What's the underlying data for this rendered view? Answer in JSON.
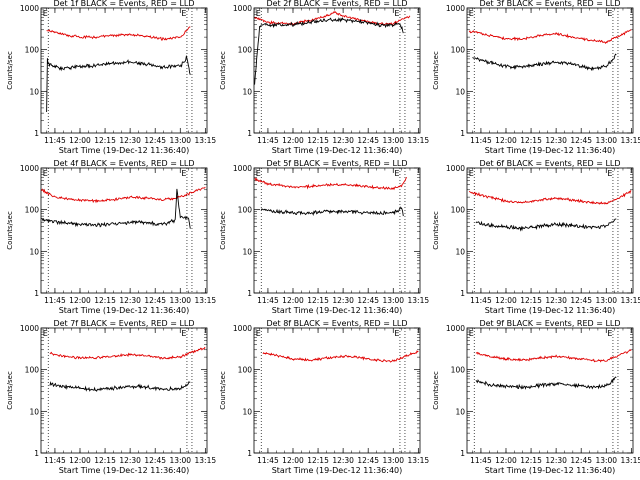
{
  "figure": {
    "background": "#ffffff",
    "line_colors": {
      "events": "#000000",
      "lld": "#e00000"
    }
  },
  "chart_data": [
    {
      "type": "line",
      "title": "Det 1f BLACK = Events, RED = LLD",
      "xlabel": "Start Time (19-Dec-12 11:36:40)",
      "ylabel": "Counts/sec",
      "yscale": "log",
      "ylim": [
        1,
        1000
      ],
      "ytick_labels": [
        "1",
        "10",
        "100",
        "1000"
      ],
      "xtick_labels": [
        "11:45",
        "12:00",
        "12:15",
        "12:30",
        "12:45",
        "13:00",
        "13:15"
      ],
      "xlim": [
        "11:36:40",
        "13:16:00"
      ],
      "markers": [
        {
          "label": "E",
          "x": "11:41"
        },
        {
          "label": "E",
          "x": "13:04"
        }
      ],
      "vlines_dotted": [
        "11:41",
        "13:04",
        "13:07"
      ],
      "series": [
        {
          "name": "LLD",
          "x": [
            "11:40",
            "11:50",
            "12:00",
            "12:10",
            "12:20",
            "12:30",
            "12:40",
            "12:50",
            "13:00",
            "13:06"
          ],
          "values": [
            300,
            230,
            200,
            200,
            220,
            230,
            210,
            180,
            200,
            350
          ]
        },
        {
          "name": "Events",
          "x": [
            "11:40",
            "11:40:30",
            "11:41",
            "11:45",
            "11:50",
            "12:00",
            "12:10",
            "12:20",
            "12:30",
            "12:40",
            "12:50",
            "13:00",
            "13:04",
            "13:06"
          ],
          "values": [
            3,
            60,
            45,
            40,
            35,
            40,
            42,
            48,
            50,
            45,
            38,
            40,
            65,
            25
          ]
        }
      ]
    },
    {
      "type": "line",
      "title": "Det 2f BLACK = Events, RED = LLD",
      "xlabel": "Start Time (19-Dec-12 11:36:40)",
      "ylabel": "Counts/sec",
      "yscale": "log",
      "ylim": [
        1,
        1000
      ],
      "ytick_labels": [
        "1",
        "10",
        "100",
        "1000"
      ],
      "xtick_labels": [
        "11:45",
        "12:00",
        "12:15",
        "12:30",
        "12:45",
        "13:00",
        "13:15"
      ],
      "xlim": [
        "11:36:40",
        "13:16:00"
      ],
      "markers": [
        {
          "label": "E",
          "x": "11:41"
        },
        {
          "label": "E",
          "x": "13:04"
        }
      ],
      "vlines_dotted": [
        "11:41",
        "13:04",
        "13:07"
      ],
      "series": [
        {
          "name": "LLD",
          "x": [
            "11:37",
            "11:45",
            "12:00",
            "12:10",
            "12:20",
            "12:25",
            "12:30",
            "12:40",
            "12:50",
            "13:00",
            "13:06",
            "13:10"
          ],
          "values": [
            600,
            450,
            420,
            500,
            650,
            780,
            650,
            520,
            430,
            420,
            550,
            650
          ]
        },
        {
          "name": "Events",
          "x": [
            "11:37",
            "11:40",
            "11:41",
            "11:45",
            "12:00",
            "12:10",
            "12:20",
            "12:30",
            "12:40",
            "12:50",
            "13:00",
            "13:04",
            "13:06"
          ],
          "values": [
            15,
            350,
            400,
            380,
            400,
            460,
            520,
            520,
            480,
            400,
            380,
            420,
            250
          ]
        }
      ]
    },
    {
      "type": "line",
      "title": "Det 3f BLACK = Events, RED = LLD",
      "xlabel": "Start Time (19-Dec-12 11:36:40)",
      "ylabel": "Counts/sec",
      "yscale": "log",
      "ylim": [
        1,
        1000
      ],
      "ytick_labels": [
        "1",
        "10",
        "100",
        "1000"
      ],
      "xtick_labels": [
        "11:45",
        "12:00",
        "12:15",
        "12:30",
        "12:45",
        "13:00",
        "13:15"
      ],
      "xlim": [
        "11:36:40",
        "13:16:00"
      ],
      "markers": [
        {
          "label": "E",
          "x": "11:41"
        },
        {
          "label": "E",
          "x": "13:04"
        }
      ],
      "vlines_dotted": [
        "11:41",
        "13:04",
        "13:07"
      ],
      "series": [
        {
          "name": "LLD",
          "x": [
            "11:38",
            "11:50",
            "12:00",
            "12:10",
            "12:20",
            "12:30",
            "12:40",
            "12:50",
            "13:00",
            "13:06",
            "13:15"
          ],
          "values": [
            280,
            220,
            180,
            180,
            220,
            240,
            200,
            170,
            150,
            200,
            300
          ]
        },
        {
          "name": "Events",
          "x": [
            "11:40",
            "11:50",
            "12:00",
            "12:10",
            "12:20",
            "12:30",
            "12:40",
            "12:50",
            "13:00",
            "13:06"
          ],
          "values": [
            65,
            50,
            40,
            38,
            45,
            50,
            45,
            35,
            40,
            75
          ]
        }
      ]
    },
    {
      "type": "line",
      "title": "Det 4f BLACK = Events, RED = LLD",
      "xlabel": "Start Time (19-Dec-12 11:36:40)",
      "ylabel": "Counts/sec",
      "yscale": "log",
      "ylim": [
        1,
        1000
      ],
      "ytick_labels": [
        "1",
        "10",
        "100",
        "1000"
      ],
      "xtick_labels": [
        "11:45",
        "12:00",
        "12:15",
        "12:30",
        "12:45",
        "13:00",
        "13:15"
      ],
      "xlim": [
        "11:36:40",
        "13:16:00"
      ],
      "markers": [
        {
          "label": "E",
          "x": "11:41"
        },
        {
          "label": "E",
          "x": "13:04"
        }
      ],
      "vlines_dotted": [
        "11:41",
        "13:04",
        "13:07"
      ],
      "series": [
        {
          "name": "LLD",
          "x": [
            "11:37",
            "11:45",
            "12:00",
            "12:10",
            "12:20",
            "12:30",
            "12:40",
            "12:50",
            "13:00",
            "13:06",
            "13:15"
          ],
          "values": [
            300,
            200,
            170,
            160,
            175,
            200,
            190,
            170,
            200,
            250,
            350
          ]
        },
        {
          "name": "Events",
          "x": [
            "11:37",
            "11:45",
            "12:00",
            "12:10",
            "12:20",
            "12:30",
            "12:40",
            "12:50",
            "12:57",
            "12:58",
            "13:00",
            "13:05",
            "13:06"
          ],
          "values": [
            60,
            50,
            45,
            43,
            45,
            50,
            48,
            45,
            55,
            300,
            70,
            65,
            35
          ]
        }
      ]
    },
    {
      "type": "line",
      "title": "Det 5f BLACK = Events, RED = LLD",
      "xlabel": "Start Time (19-Dec-12 11:36:40)",
      "ylabel": "Counts/sec",
      "yscale": "log",
      "ylim": [
        1,
        1000
      ],
      "ytick_labels": [
        "1",
        "10",
        "100",
        "1000"
      ],
      "xtick_labels": [
        "11:45",
        "12:00",
        "12:15",
        "12:30",
        "12:45",
        "13:00",
        "13:15"
      ],
      "xlim": [
        "11:36:40",
        "13:16:00"
      ],
      "markers": [
        {
          "label": "E",
          "x": "11:41"
        },
        {
          "label": "E",
          "x": "13:04"
        }
      ],
      "vlines_dotted": [
        "11:41",
        "13:04",
        "13:07"
      ],
      "series": [
        {
          "name": "LLD",
          "x": [
            "11:37",
            "11:45",
            "12:00",
            "12:10",
            "12:20",
            "12:30",
            "12:40",
            "12:50",
            "13:00",
            "13:05",
            "13:08"
          ],
          "values": [
            550,
            420,
            350,
            360,
            390,
            400,
            380,
            340,
            320,
            380,
            600
          ]
        },
        {
          "name": "Events",
          "x": [
            "11:41",
            "11:45",
            "12:00",
            "12:10",
            "12:20",
            "12:30",
            "12:40",
            "12:50",
            "13:00",
            "13:05",
            "13:06"
          ],
          "values": [
            100,
            95,
            85,
            82,
            90,
            92,
            88,
            80,
            85,
            110,
            70
          ]
        }
      ]
    },
    {
      "type": "line",
      "title": "Det 6f BLACK = Events, RED = LLD",
      "xlabel": "Start Time (19-Dec-12 11:36:40)",
      "ylabel": "Counts/sec",
      "yscale": "log",
      "ylim": [
        1,
        1000
      ],
      "ytick_labels": [
        "1",
        "10",
        "100",
        "1000"
      ],
      "xtick_labels": [
        "11:45",
        "12:00",
        "12:15",
        "12:30",
        "12:45",
        "13:00",
        "13:15"
      ],
      "xlim": [
        "11:36:40",
        "13:16:00"
      ],
      "markers": [
        {
          "label": "E",
          "x": "11:41"
        },
        {
          "label": "E",
          "x": "13:04"
        }
      ],
      "vlines_dotted": [
        "11:41",
        "13:04",
        "13:07"
      ],
      "series": [
        {
          "name": "LLD",
          "x": [
            "11:38",
            "11:50",
            "12:00",
            "12:10",
            "12:20",
            "12:30",
            "12:40",
            "12:50",
            "13:00",
            "13:06",
            "13:15"
          ],
          "values": [
            260,
            200,
            160,
            150,
            170,
            190,
            170,
            150,
            140,
            180,
            280
          ]
        },
        {
          "name": "Events",
          "x": [
            "11:42",
            "11:50",
            "12:00",
            "12:10",
            "12:20",
            "12:30",
            "12:40",
            "12:50",
            "13:00",
            "13:06"
          ],
          "values": [
            50,
            42,
            38,
            36,
            40,
            45,
            42,
            38,
            40,
            60
          ]
        }
      ]
    },
    {
      "type": "line",
      "title": "Det 7f BLACK = Events, RED = LLD",
      "xlabel": "Start Time (19-Dec-12 11:36:40)",
      "ylabel": "Counts/sec",
      "yscale": "log",
      "ylim": [
        1,
        1000
      ],
      "ytick_labels": [
        "1",
        "10",
        "100",
        "1000"
      ],
      "xtick_labels": [
        "11:45",
        "12:00",
        "12:15",
        "12:30",
        "12:45",
        "13:00",
        "13:15"
      ],
      "xlim": [
        "11:36:40",
        "13:16:00"
      ],
      "markers": [
        {
          "label": "E",
          "x": "11:41"
        },
        {
          "label": "E",
          "x": "13:04"
        }
      ],
      "vlines_dotted": [
        "11:41",
        "13:04",
        "13:07"
      ],
      "series": [
        {
          "name": "LLD",
          "x": [
            "11:42",
            "11:50",
            "12:00",
            "12:10",
            "12:20",
            "12:30",
            "12:40",
            "12:50",
            "13:00",
            "13:06",
            "13:15"
          ],
          "values": [
            250,
            210,
            190,
            195,
            210,
            230,
            215,
            190,
            200,
            260,
            330
          ]
        },
        {
          "name": "Events",
          "x": [
            "11:42",
            "11:50",
            "12:00",
            "12:10",
            "12:20",
            "12:30",
            "12:40",
            "12:50",
            "13:00",
            "13:06"
          ],
          "values": [
            45,
            40,
            35,
            33,
            36,
            40,
            38,
            33,
            35,
            50
          ]
        }
      ]
    },
    {
      "type": "line",
      "title": "Det 8f BLACK = Events, RED = LLD",
      "xlabel": "Start Time (19-Dec-12 11:36:40)",
      "ylabel": "Counts/sec",
      "yscale": "log",
      "ylim": [
        1,
        1000
      ],
      "ytick_labels": [
        "1",
        "10",
        "100",
        "1000"
      ],
      "xtick_labels": [
        "11:45",
        "12:00",
        "12:15",
        "12:30",
        "12:45",
        "13:00",
        "13:15"
      ],
      "xlim": [
        "11:36:40",
        "13:16:00"
      ],
      "markers": [
        {
          "label": "E",
          "x": "11:41"
        },
        {
          "label": "E",
          "x": "13:04"
        }
      ],
      "vlines_dotted": [
        "11:41",
        "13:04",
        "13:07"
      ],
      "series": [
        {
          "name": "LLD",
          "x": [
            "11:42",
            "11:50",
            "12:00",
            "12:10",
            "12:20",
            "12:30",
            "12:40",
            "12:50",
            "13:00",
            "13:06",
            "13:15"
          ],
          "values": [
            250,
            220,
            180,
            170,
            190,
            210,
            195,
            170,
            160,
            200,
            280
          ]
        }
      ]
    },
    {
      "type": "line",
      "title": "Det 9f BLACK = Events, RED = LLD",
      "xlabel": "Start Time (19-Dec-12 11:36:40)",
      "ylabel": "Counts/sec",
      "yscale": "log",
      "ylim": [
        1,
        1000
      ],
      "ytick_labels": [
        "1",
        "10",
        "100",
        "1000"
      ],
      "xtick_labels": [
        "11:45",
        "12:00",
        "12:15",
        "12:30",
        "12:45",
        "13:00",
        "13:15"
      ],
      "xlim": [
        "11:36:40",
        "13:16:00"
      ],
      "markers": [
        {
          "label": "E",
          "x": "11:41"
        },
        {
          "label": "E",
          "x": "13:04"
        }
      ],
      "vlines_dotted": [
        "11:41",
        "13:04",
        "13:07"
      ],
      "series": [
        {
          "name": "LLD",
          "x": [
            "11:42",
            "11:50",
            "12:00",
            "12:10",
            "12:20",
            "12:30",
            "12:40",
            "12:50",
            "13:00",
            "13:06",
            "13:15"
          ],
          "values": [
            250,
            210,
            180,
            170,
            190,
            210,
            190,
            170,
            160,
            210,
            300
          ]
        },
        {
          "name": "Events",
          "x": [
            "11:42",
            "11:50",
            "12:00",
            "12:10",
            "12:20",
            "12:30",
            "12:40",
            "12:50",
            "13:00",
            "13:06"
          ],
          "values": [
            52,
            45,
            40,
            38,
            42,
            46,
            43,
            38,
            40,
            65
          ]
        }
      ]
    }
  ]
}
